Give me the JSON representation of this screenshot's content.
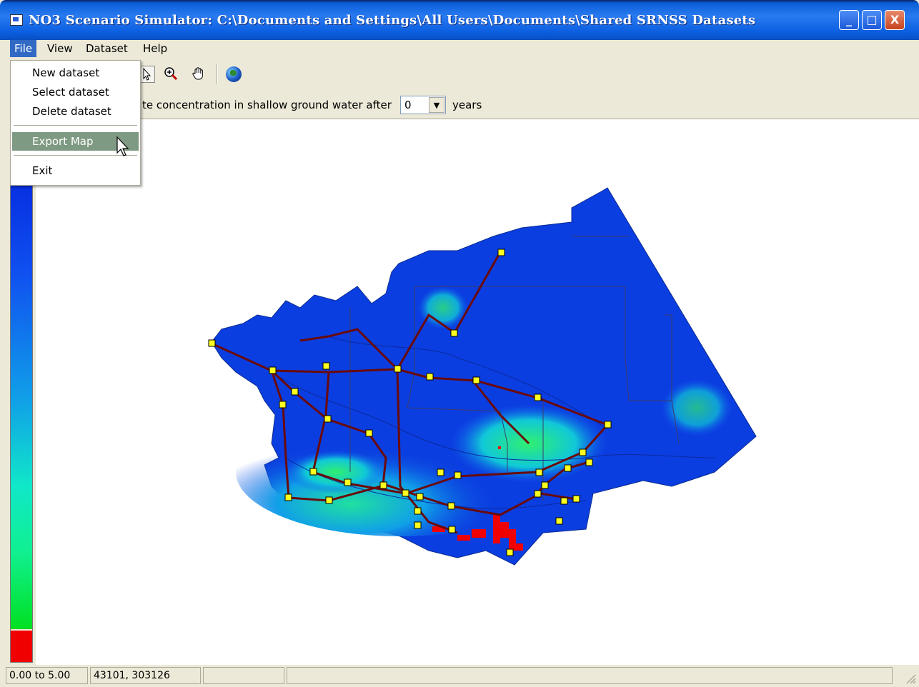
{
  "window": {
    "title": "NO3 Scenario Simulator:   C:\\Documents and Settings\\All Users\\Documents\\Shared SRNSS Datasets",
    "minimize_label": "_",
    "maximize_label": "□",
    "close_label": "X"
  },
  "menubar": {
    "items": [
      {
        "label": "File"
      },
      {
        "label": "View"
      },
      {
        "label": "Dataset"
      },
      {
        "label": "Help"
      }
    ]
  },
  "file_menu": {
    "items": [
      {
        "label": "New dataset"
      },
      {
        "label": "Select dataset"
      },
      {
        "label": "Delete dataset"
      },
      {
        "label": "Export Map"
      },
      {
        "label": "Exit"
      }
    ],
    "highlighted": "Export Map"
  },
  "toolbar": {
    "tools": [
      {
        "icon": "pointer-icon"
      },
      {
        "icon": "zoom-in-icon"
      },
      {
        "icon": "pan-hand-icon"
      },
      {
        "icon": "globe-icon"
      }
    ]
  },
  "scenario": {
    "label": "te concentration in shallow ground water after",
    "years_value": "0",
    "years_label": "years"
  },
  "legend": {
    "colors": [
      "#0018d6",
      "#1050f0",
      "#10a0e8",
      "#10e8c8",
      "#10f090",
      "#00e020",
      "#f00000"
    ]
  },
  "statusbar": {
    "range": "0.00 to 5.00",
    "coords": "43101, 303126",
    "panel3": "",
    "panel4": ""
  }
}
